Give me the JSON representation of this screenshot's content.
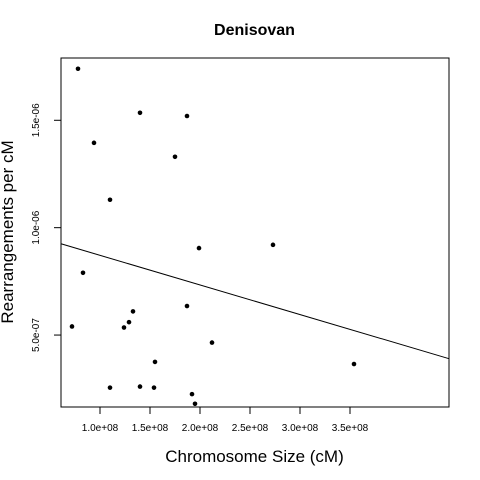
{
  "chart_data": {
    "type": "scatter",
    "title": "Denisovan",
    "xlabel": "Chromosome Size (cM)",
    "ylabel": "Rearrangements per cM",
    "xlim": [
      61000000,
      449000000
    ],
    "ylim": [
      1.65e-07,
      1.79e-06
    ],
    "x_ticks": [
      {
        "value": 100000000,
        "label": "1.0e+08"
      },
      {
        "value": 150000000,
        "label": "1.5e+08"
      },
      {
        "value": 200000000,
        "label": "2.0e+08"
      },
      {
        "value": 250000000,
        "label": "2.5e+08"
      },
      {
        "value": 300000000,
        "label": "3.0e+08"
      },
      {
        "value": 350000000,
        "label": "3.5e+08"
      }
    ],
    "y_ticks": [
      {
        "value": 5e-07,
        "label": "5.0e-07"
      },
      {
        "value": 1e-06,
        "label": "1.0e-06"
      },
      {
        "value": 1.5e-06,
        "label": "1.5e-06"
      }
    ],
    "points": [
      {
        "x": 78000000,
        "y": 1.74e-06
      },
      {
        "x": 140000000,
        "y": 1.535e-06
      },
      {
        "x": 187000000,
        "y": 1.52e-06
      },
      {
        "x": 94000000,
        "y": 1.395e-06
      },
      {
        "x": 175000000,
        "y": 1.33e-06
      },
      {
        "x": 110000000,
        "y": 1.13e-06
      },
      {
        "x": 199000000,
        "y": 9.05e-07
      },
      {
        "x": 273000000,
        "y": 9.2e-07
      },
      {
        "x": 83000000,
        "y": 7.9e-07
      },
      {
        "x": 187000000,
        "y": 6.35e-07
      },
      {
        "x": 133000000,
        "y": 6.1e-07
      },
      {
        "x": 129000000,
        "y": 5.6e-07
      },
      {
        "x": 124000000,
        "y": 5.35e-07
      },
      {
        "x": 72000000,
        "y": 5.4e-07
      },
      {
        "x": 212000000,
        "y": 4.65e-07
      },
      {
        "x": 155000000,
        "y": 3.75e-07
      },
      {
        "x": 354000000,
        "y": 3.65e-07
      },
      {
        "x": 110000000,
        "y": 2.55e-07
      },
      {
        "x": 140000000,
        "y": 2.6e-07
      },
      {
        "x": 154000000,
        "y": 2.55e-07
      },
      {
        "x": 192000000,
        "y": 2.25e-07
      },
      {
        "x": 195000000,
        "y": 1.8e-07
      }
    ],
    "regression_line": {
      "start": {
        "x": 61000000,
        "y": 9.25e-07
      },
      "end": {
        "x": 449000000,
        "y": 3.9e-07
      }
    },
    "grid": false,
    "legend": "none"
  }
}
